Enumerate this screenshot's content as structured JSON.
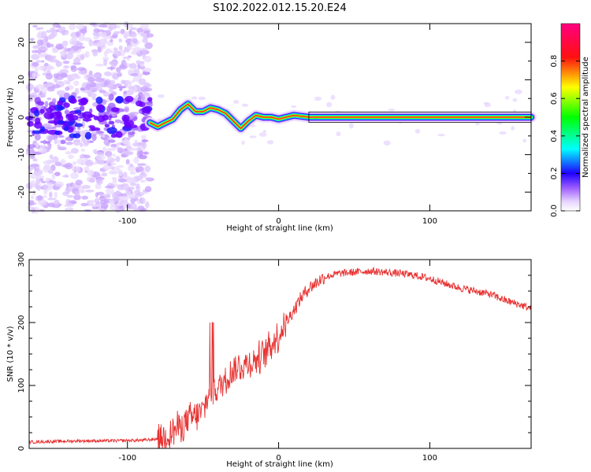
{
  "title": "S102.2022.012.15.20.E24",
  "chart_data": [
    {
      "type": "heatmap",
      "xlabel": "Height of straight line (km)",
      "ylabel": "Frequency (Hz)",
      "xlim": [
        -165,
        167
      ],
      "ylim": [
        -25,
        25
      ],
      "x_ticks": [
        -100,
        0,
        100
      ],
      "y_ticks": [
        -20,
        -10,
        0,
        10,
        20
      ],
      "colorbar": {
        "label": "Normalized spectral amplitude",
        "range": [
          0,
          1
        ],
        "ticks": [
          "0.0",
          "0.2",
          "0.4",
          "0.6",
          "0.8"
        ],
        "colormap": [
          "#ffffff",
          "#d8b8ff",
          "#8a2be2",
          "#0000ff",
          "#00ffff",
          "#00ff00",
          "#ffff00",
          "#ff0000",
          "#ff0080"
        ]
      },
      "ridge": {
        "description_free_values": true,
        "x": [
          -85,
          -80,
          -75,
          -70,
          -65,
          -60,
          -55,
          -50,
          -45,
          -40,
          -35,
          -30,
          -25,
          -20,
          -15,
          -10,
          -5,
          0,
          5,
          10,
          20,
          30,
          60,
          90,
          120,
          167
        ],
        "y": [
          -1.5,
          -2.5,
          -1.5,
          -0.5,
          2.0,
          3.5,
          1.5,
          1.5,
          2.5,
          2.0,
          1.0,
          -1.0,
          -3.0,
          -1.0,
          0.5,
          0.0,
          0.0,
          -0.5,
          0.0,
          0.5,
          0.0,
          0.0,
          0.0,
          0.0,
          0.0,
          0.0
        ]
      }
    },
    {
      "type": "line",
      "xlabel": "Height of straight line (km)",
      "ylabel": "SNR (10 * v/v)",
      "xlim": [
        -165,
        167
      ],
      "ylim": [
        0,
        300
      ],
      "x_ticks": [
        -100,
        0,
        100
      ],
      "y_ticks": [
        0,
        100,
        200,
        300
      ],
      "color": "#e83030",
      "series": [
        {
          "x": [
            -165,
            -150,
            -130,
            -110,
            -90,
            -80,
            -75,
            -70,
            -65,
            -60,
            -55,
            -50,
            -45,
            -40,
            -35,
            -30,
            -25,
            -20,
            -15,
            -10,
            -5,
            0,
            5,
            10,
            15,
            20,
            30,
            40,
            50,
            60,
            70,
            80,
            90,
            100,
            110,
            120,
            130,
            140,
            150,
            160,
            167
          ],
          "y": [
            10,
            11,
            12,
            12,
            13,
            15,
            20,
            28,
            35,
            45,
            50,
            60,
            90,
            95,
            110,
            125,
            130,
            135,
            140,
            150,
            165,
            180,
            200,
            220,
            240,
            255,
            272,
            278,
            280,
            282,
            280,
            278,
            275,
            270,
            262,
            255,
            250,
            245,
            235,
            228,
            222
          ]
        }
      ]
    }
  ]
}
